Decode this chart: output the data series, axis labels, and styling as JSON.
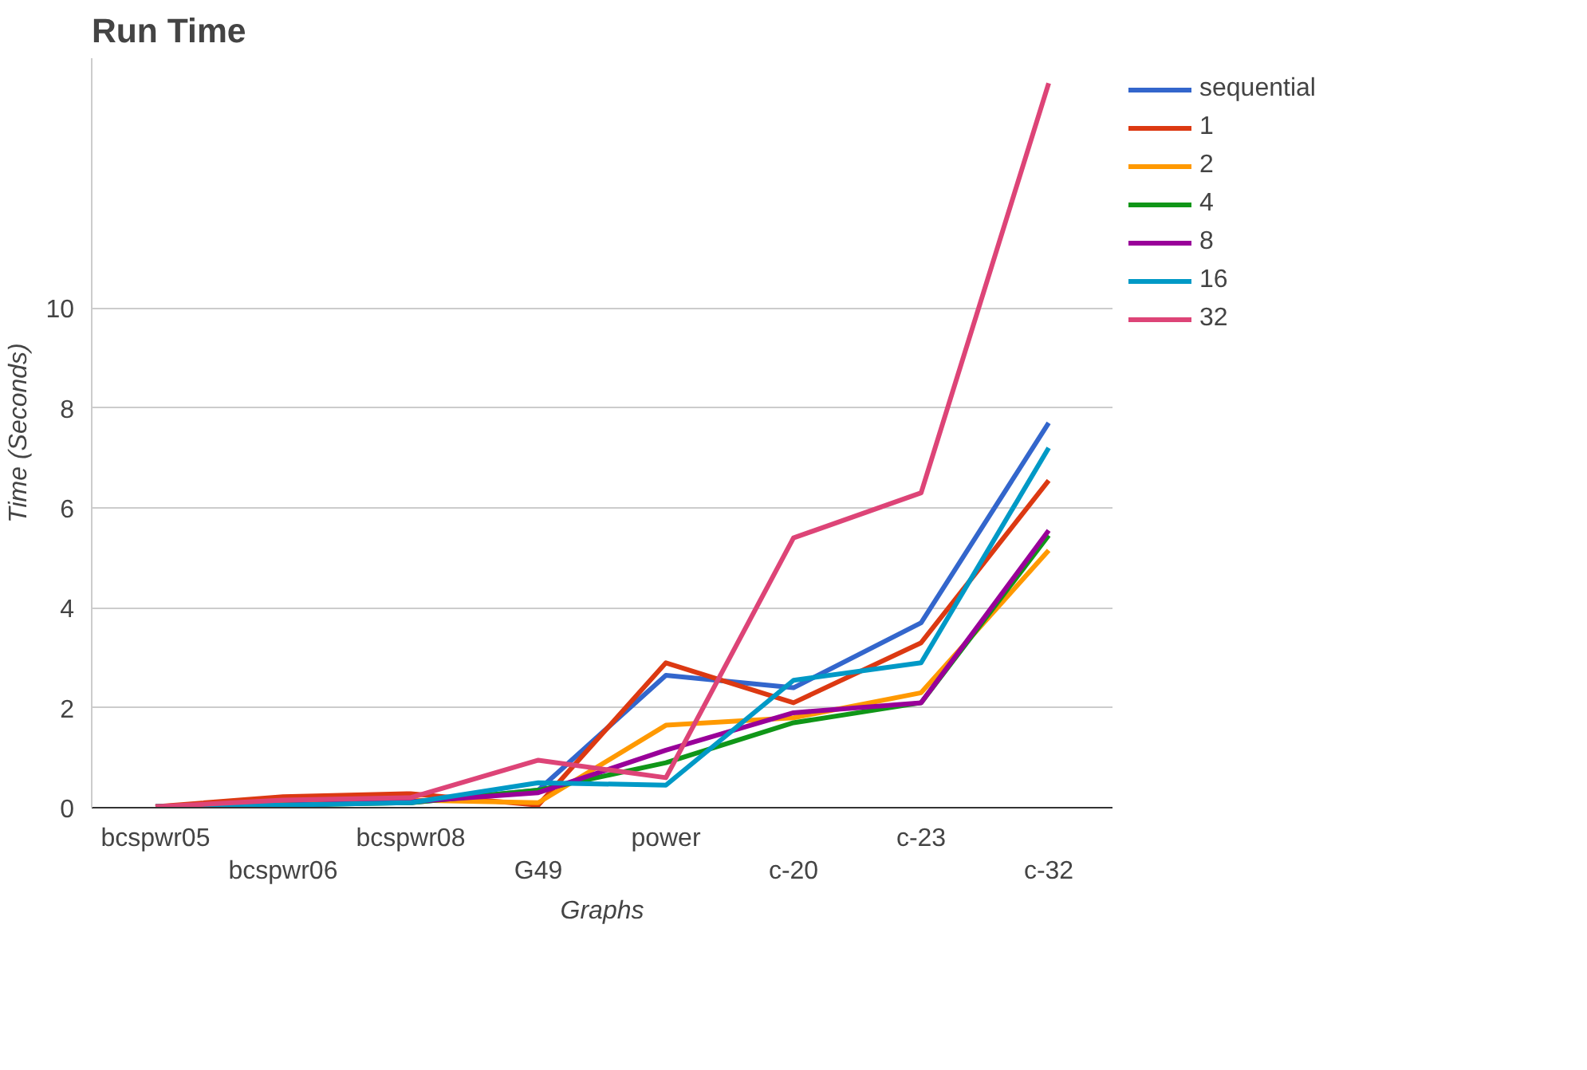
{
  "chart_data": {
    "type": "line",
    "title": "Run Time",
    "xlabel": "Graphs",
    "ylabel": "Time (Seconds)",
    "categories": [
      "bcspwr05",
      "bcspwr06",
      "bcspwr08",
      "G49",
      "power",
      "c-20",
      "c-23",
      "c-32"
    ],
    "series": [
      {
        "name": "sequential",
        "color": "#3366cc",
        "values": [
          0.02,
          0.1,
          0.1,
          0.35,
          2.65,
          2.4,
          3.7,
          7.7
        ]
      },
      {
        "name": "1",
        "color": "#dc3912",
        "values": [
          0.02,
          0.22,
          0.28,
          0.05,
          2.9,
          2.1,
          3.3,
          6.55
        ]
      },
      {
        "name": "2",
        "color": "#ff9900",
        "values": [
          0.02,
          0.1,
          0.15,
          0.1,
          1.65,
          1.8,
          2.3,
          5.15
        ]
      },
      {
        "name": "4",
        "color": "#109618",
        "values": [
          0.02,
          0.05,
          0.1,
          0.35,
          0.9,
          1.7,
          2.1,
          5.45
        ]
      },
      {
        "name": "8",
        "color": "#990099",
        "values": [
          0.02,
          0.05,
          0.12,
          0.3,
          1.15,
          1.9,
          2.1,
          5.55
        ]
      },
      {
        "name": "16",
        "color": "#0099c6",
        "values": [
          0.02,
          0.05,
          0.1,
          0.5,
          0.45,
          2.55,
          2.9,
          7.2
        ]
      },
      {
        "name": "32",
        "color": "#dd4477",
        "values": [
          0.02,
          0.15,
          0.2,
          0.95,
          0.6,
          5.4,
          6.3,
          14.5
        ]
      }
    ],
    "ylim": [
      0,
      15
    ],
    "yticks": [
      0,
      2,
      4,
      6,
      8,
      10
    ],
    "grid": "y",
    "legend": "right",
    "marker": "none",
    "line_style": "solid"
  }
}
